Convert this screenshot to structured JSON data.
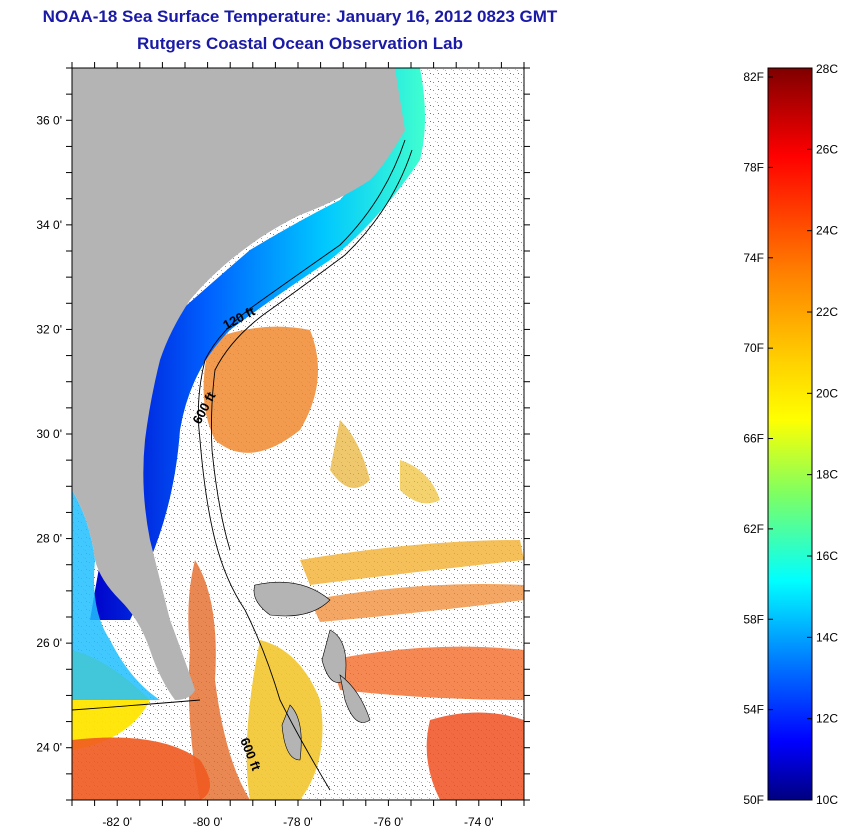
{
  "header": {
    "title": "NOAA-18 Sea Surface Temperature:  January 16, 2012 0823 GMT",
    "subtitle": "Rutgers Coastal Ocean Observation Lab"
  },
  "map": {
    "lon_range": [
      -83,
      -73
    ],
    "lat_range": [
      23,
      37
    ],
    "lat_labels": [
      "36 0'",
      "34 0'",
      "32 0'",
      "30 0'",
      "28 0'",
      "26 0'",
      "24 0'"
    ],
    "lat_values": [
      36,
      34,
      32,
      30,
      28,
      26,
      24
    ],
    "lon_labels": [
      "-82 0'",
      "-80 0'",
      "-78 0'",
      "-76 0'",
      "-74 0'"
    ],
    "lon_values": [
      -82,
      -80,
      -78,
      -76,
      -74
    ],
    "contour_labels": [
      "120 ft",
      "600 ft",
      "600 ft"
    ],
    "colors": {
      "land": "#b4b4b4",
      "ocean_nodata": "#ffffff",
      "coastline": "#000000"
    }
  },
  "colorbar": {
    "f_labels": [
      "82F",
      "78F",
      "74F",
      "70F",
      "66F",
      "62F",
      "58F",
      "54F",
      "50F"
    ],
    "c_labels": [
      "28C",
      "26C",
      "24C",
      "22C",
      "20C",
      "18C",
      "16C",
      "14C",
      "12C",
      "10C"
    ],
    "range_c": [
      10,
      28
    ],
    "colormap": [
      "#7f0000",
      "#ff0000",
      "#ff8000",
      "#ffff00",
      "#80ff80",
      "#00ffff",
      "#0080ff",
      "#0000ff",
      "#00008f"
    ]
  }
}
